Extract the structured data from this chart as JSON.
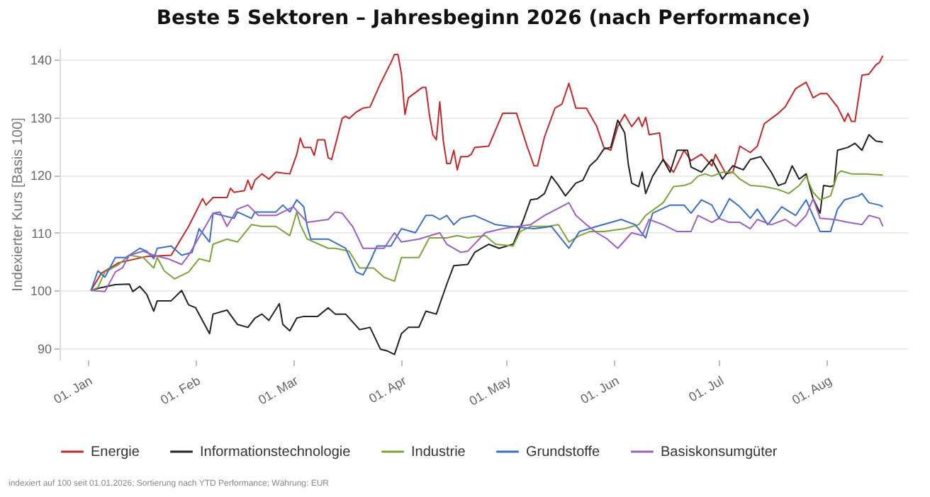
{
  "chart_data": {
    "type": "line",
    "title": "Beste 5 Sektoren – Jahresbeginn 2026 (nach Performance)",
    "ylabel": "Indexierter Kurs [Basis 100]",
    "xlim": [
      "2025-12-24",
      "2026-08-24"
    ],
    "xticks": [
      {
        "value": "2026-01-01",
        "label": "01. Jan"
      },
      {
        "value": "2026-02-01",
        "label": "01. Feb"
      },
      {
        "value": "2026-03-01",
        "label": "01. Mar"
      },
      {
        "value": "2026-04-01",
        "label": "01. Apr"
      },
      {
        "value": "2026-05-01",
        "label": "01. May"
      },
      {
        "value": "2026-06-01",
        "label": "01. Jun"
      },
      {
        "value": "2026-07-01",
        "label": "01. Jul"
      },
      {
        "value": "2026-08-01",
        "label": "01. Aug"
      }
    ],
    "ylim": [
      88,
      142
    ],
    "yticks": [
      90,
      100,
      110,
      120,
      130,
      140
    ],
    "grid": "y",
    "legend": "bottom",
    "marker": "none",
    "line_style": "solid",
    "annotations": [
      "indexiert auf 100 seit 01.01.2026; Sortierung nach YTD Performance; Währung: EUR"
    ],
    "series": [
      {
        "name": "Energie",
        "color": "#c0282d",
        "x": [
          "2026-01-02",
          "2026-01-05",
          "2026-01-10",
          "2026-01-18",
          "2026-01-25",
          "2026-01-30",
          "2026-02-03",
          "2026-02-04",
          "2026-02-06",
          "2026-02-10",
          "2026-02-11",
          "2026-02-12",
          "2026-02-15",
          "2026-02-16",
          "2026-02-17",
          "2026-02-18",
          "2026-02-20",
          "2026-02-22",
          "2026-02-24",
          "2026-02-28",
          "2026-03-02",
          "2026-03-03",
          "2026-03-04",
          "2026-03-06",
          "2026-03-07",
          "2026-03-08",
          "2026-03-10",
          "2026-03-11",
          "2026-03-12",
          "2026-03-15",
          "2026-03-16",
          "2026-03-17",
          "2026-03-19",
          "2026-03-21",
          "2026-03-23",
          "2026-03-26",
          "2026-03-29",
          "2026-03-30",
          "2026-03-31",
          "2026-04-01",
          "2026-04-02",
          "2026-04-03",
          "2026-04-07",
          "2026-04-08",
          "2026-04-09",
          "2026-04-10",
          "2026-04-11",
          "2026-04-12",
          "2026-04-13",
          "2026-04-14",
          "2026-04-15",
          "2026-04-16",
          "2026-04-17",
          "2026-04-18",
          "2026-04-20",
          "2026-04-21",
          "2026-04-22",
          "2026-04-26",
          "2026-04-30",
          "2026-05-04",
          "2026-05-07",
          "2026-05-09",
          "2026-05-10",
          "2026-05-12",
          "2026-05-15",
          "2026-05-17",
          "2026-05-19",
          "2026-05-21",
          "2026-05-24",
          "2026-05-27",
          "2026-05-29",
          "2026-05-31",
          "2026-06-02",
          "2026-06-04",
          "2026-06-06",
          "2026-06-08",
          "2026-06-09",
          "2026-06-10",
          "2026-06-11",
          "2026-06-14",
          "2026-06-15",
          "2026-06-18",
          "2026-06-21",
          "2026-06-23",
          "2026-06-26",
          "2026-06-29",
          "2026-06-30",
          "2026-07-03",
          "2026-07-05",
          "2026-07-07",
          "2026-07-10",
          "2026-07-12",
          "2026-07-14",
          "2026-07-18",
          "2026-07-20",
          "2026-07-23",
          "2026-07-26",
          "2026-07-28",
          "2026-07-30",
          "2026-08-01",
          "2026-08-04",
          "2026-08-06",
          "2026-08-07",
          "2026-08-08",
          "2026-08-09",
          "2026-08-11",
          "2026-08-13",
          "2026-08-15",
          "2026-08-16",
          "2026-08-17"
        ],
        "values": [
          100,
          103.0,
          104.8,
          105.9,
          106.1,
          111.1,
          115.9,
          114.8,
          116.1,
          116.1,
          117.7,
          117.0,
          117.3,
          119.1,
          117.5,
          119.1,
          120.2,
          119.3,
          120.5,
          120.2,
          123.6,
          126.4,
          124.8,
          124.8,
          123.4,
          126.1,
          126.1,
          123.0,
          122.7,
          129.8,
          130.2,
          129.8,
          130.9,
          131.6,
          131.8,
          135.9,
          139.5,
          140.9,
          140.9,
          137.5,
          130.5,
          133.4,
          135.2,
          135.2,
          130.5,
          127.0,
          126.1,
          132.7,
          125.9,
          122.0,
          122.0,
          124.3,
          120.9,
          123.2,
          123.2,
          123.6,
          124.8,
          125.0,
          130.7,
          130.7,
          125.0,
          121.6,
          121.6,
          126.6,
          131.6,
          132.3,
          135.9,
          131.6,
          131.6,
          128.4,
          124.8,
          124.3,
          128.4,
          130.5,
          128.4,
          130.0,
          128.4,
          130.0,
          127.0,
          127.3,
          122.7,
          120.5,
          124.3,
          122.5,
          123.6,
          121.6,
          123.6,
          120.2,
          120.5,
          125.0,
          123.9,
          125.0,
          128.9,
          130.7,
          131.8,
          135.0,
          136.1,
          133.4,
          134.1,
          134.1,
          131.8,
          129.3,
          130.7,
          129.3,
          129.3,
          137.3,
          137.5,
          139.1,
          139.5,
          140.7
        ]
      },
      {
        "name": "Informationstechnologie",
        "color": "#222222",
        "x": [
          "2026-01-02",
          "2026-01-05",
          "2026-01-09",
          "2026-01-13",
          "2026-01-14",
          "2026-01-16",
          "2026-01-18",
          "2026-01-20",
          "2026-01-21",
          "2026-01-25",
          "2026-01-28",
          "2026-01-30",
          "2026-02-01",
          "2026-02-05",
          "2026-02-06",
          "2026-02-10",
          "2026-02-13",
          "2026-02-16",
          "2026-02-18",
          "2026-02-20",
          "2026-02-22",
          "2026-02-25",
          "2026-02-26",
          "2026-02-28",
          "2026-03-02",
          "2026-03-04",
          "2026-03-08",
          "2026-03-11",
          "2026-03-13",
          "2026-03-16",
          "2026-03-20",
          "2026-03-23",
          "2026-03-26",
          "2026-03-28",
          "2026-03-30",
          "2026-04-01",
          "2026-04-03",
          "2026-04-06",
          "2026-04-08",
          "2026-04-11",
          "2026-04-14",
          "2026-04-16",
          "2026-04-20",
          "2026-04-22",
          "2026-04-24",
          "2026-04-26",
          "2026-04-29",
          "2026-05-03",
          "2026-05-06",
          "2026-05-08",
          "2026-05-10",
          "2026-05-12",
          "2026-05-14",
          "2026-05-16",
          "2026-05-18",
          "2026-05-21",
          "2026-05-23",
          "2026-05-25",
          "2026-05-27",
          "2026-05-29",
          "2026-05-31",
          "2026-06-02",
          "2026-06-04",
          "2026-06-05",
          "2026-06-06",
          "2026-06-08",
          "2026-06-09",
          "2026-06-10",
          "2026-06-12",
          "2026-06-15",
          "2026-06-17",
          "2026-06-19",
          "2026-06-22",
          "2026-06-23",
          "2026-06-26",
          "2026-06-29",
          "2026-07-02",
          "2026-07-05",
          "2026-07-08",
          "2026-07-10",
          "2026-07-13",
          "2026-07-16",
          "2026-07-18",
          "2026-07-20",
          "2026-07-22",
          "2026-07-24",
          "2026-07-26",
          "2026-07-28",
          "2026-07-30",
          "2026-07-31",
          "2026-08-02",
          "2026-08-03",
          "2026-08-04",
          "2026-08-07",
          "2026-08-09",
          "2026-08-11",
          "2026-08-13",
          "2026-08-15",
          "2026-08-17"
        ],
        "values": [
          100,
          100.5,
          101.0,
          101.1,
          99.8,
          100.7,
          99.3,
          96.4,
          98.2,
          98.2,
          100,
          97.5,
          97.0,
          92.5,
          95.9,
          96.6,
          94.1,
          93.6,
          95.2,
          95.9,
          94.8,
          97.7,
          94.1,
          93.0,
          95.2,
          95.5,
          95.5,
          97.0,
          95.9,
          95.9,
          93.2,
          93.6,
          89.8,
          89.5,
          88.9,
          92.5,
          93.6,
          93.6,
          96.4,
          95.9,
          101.1,
          104.3,
          104.5,
          106.6,
          107.3,
          108.0,
          107.3,
          108.0,
          112.3,
          115.7,
          115.9,
          116.8,
          119.8,
          118.2,
          116.4,
          118.6,
          119.1,
          121.6,
          122.7,
          124.5,
          124.8,
          129.5,
          127.3,
          122.0,
          118.6,
          118.0,
          120.5,
          116.8,
          119.8,
          122.7,
          120.5,
          124.3,
          124.3,
          121.4,
          120.5,
          122.7,
          119.3,
          121.6,
          120.9,
          122.7,
          123.2,
          120.5,
          118.2,
          118.6,
          121.6,
          119.3,
          120.2,
          115.9,
          113.4,
          118.2,
          118.0,
          118.2,
          124.3,
          124.8,
          125.5,
          124.3,
          127.0,
          125.9,
          125.7
        ]
      },
      {
        "name": "Industrie",
        "color": "#7fa33b",
        "x": [
          "2026-01-02",
          "2026-01-04",
          "2026-01-06",
          "2026-01-10",
          "2026-01-13",
          "2026-01-17",
          "2026-01-20",
          "2026-01-21",
          "2026-01-23",
          "2026-01-26",
          "2026-01-30",
          "2026-02-02",
          "2026-02-05",
          "2026-02-06",
          "2026-02-10",
          "2026-02-13",
          "2026-02-17",
          "2026-02-20",
          "2026-02-24",
          "2026-02-28",
          "2026-03-02",
          "2026-03-03",
          "2026-03-05",
          "2026-03-11",
          "2026-03-13",
          "2026-03-17",
          "2026-03-20",
          "2026-03-24",
          "2026-03-27",
          "2026-03-30",
          "2026-04-01",
          "2026-04-06",
          "2026-04-09",
          "2026-04-14",
          "2026-04-17",
          "2026-04-20",
          "2026-04-25",
          "2026-04-28",
          "2026-05-03",
          "2026-05-05",
          "2026-05-08",
          "2026-05-13",
          "2026-05-16",
          "2026-05-19",
          "2026-05-22",
          "2026-05-25",
          "2026-05-29",
          "2026-06-04",
          "2026-06-08",
          "2026-06-10",
          "2026-06-15",
          "2026-06-18",
          "2026-06-21",
          "2026-06-23",
          "2026-06-25",
          "2026-06-27",
          "2026-06-29",
          "2026-07-02",
          "2026-07-05",
          "2026-07-07",
          "2026-07-10",
          "2026-07-14",
          "2026-07-18",
          "2026-07-21",
          "2026-07-24",
          "2026-07-26",
          "2026-07-28",
          "2026-07-30",
          "2026-08-02",
          "2026-08-04",
          "2026-08-05",
          "2026-08-08",
          "2026-08-12",
          "2026-08-17"
        ],
        "values": [
          100,
          100.5,
          103.2,
          104.5,
          106.1,
          105.7,
          103.9,
          105.7,
          103.4,
          102.0,
          103.2,
          105.5,
          105.0,
          108.0,
          108.9,
          108.4,
          111.4,
          111.1,
          111.1,
          109.5,
          113.6,
          111.4,
          108.9,
          107.3,
          107.3,
          106.8,
          103.9,
          103.9,
          102.3,
          101.6,
          105.7,
          105.7,
          109.1,
          109.1,
          109.5,
          109.1,
          109.5,
          108.0,
          107.7,
          110.2,
          111.1,
          111.1,
          111.4,
          108.4,
          109.5,
          110.2,
          110.2,
          110.7,
          111.4,
          113.0,
          115.2,
          118.0,
          118.2,
          118.6,
          119.8,
          120.2,
          119.8,
          120.5,
          120.5,
          119.3,
          118.2,
          118.0,
          117.5,
          116.8,
          118.2,
          119.8,
          117.0,
          115.7,
          116.4,
          120.2,
          120.7,
          120.2,
          120.2,
          120.0
        ]
      },
      {
        "name": "Grundstoffe",
        "color": "#3a6fc4",
        "x": [
          "2026-01-02",
          "2026-01-04",
          "2026-01-06",
          "2026-01-09",
          "2026-01-12",
          "2026-01-16",
          "2026-01-18",
          "2026-01-20",
          "2026-01-21",
          "2026-01-25",
          "2026-01-28",
          "2026-01-31",
          "2026-02-02",
          "2026-02-05",
          "2026-02-06",
          "2026-02-12",
          "2026-02-13",
          "2026-02-17",
          "2026-02-18",
          "2026-02-24",
          "2026-02-26",
          "2026-02-28",
          "2026-03-02",
          "2026-03-04",
          "2026-03-05",
          "2026-03-06",
          "2026-03-11",
          "2026-03-16",
          "2026-03-19",
          "2026-03-21",
          "2026-03-23",
          "2026-03-25",
          "2026-03-29",
          "2026-04-01",
          "2026-04-05",
          "2026-04-08",
          "2026-04-10",
          "2026-04-12",
          "2026-04-14",
          "2026-04-16",
          "2026-04-18",
          "2026-04-22",
          "2026-04-28",
          "2026-05-02",
          "2026-05-09",
          "2026-05-14",
          "2026-05-19",
          "2026-05-22",
          "2026-05-27",
          "2026-06-03",
          "2026-06-07",
          "2026-06-10",
          "2026-06-12",
          "2026-06-17",
          "2026-06-21",
          "2026-06-23",
          "2026-06-26",
          "2026-06-29",
          "2026-07-01",
          "2026-07-04",
          "2026-07-07",
          "2026-07-10",
          "2026-07-12",
          "2026-07-15",
          "2026-07-19",
          "2026-07-23",
          "2026-07-26",
          "2026-07-30",
          "2026-08-02",
          "2026-08-04",
          "2026-08-06",
          "2026-08-10",
          "2026-08-11",
          "2026-08-13",
          "2026-08-16",
          "2026-08-17"
        ],
        "values": [
          100,
          103.4,
          102.3,
          105.7,
          105.7,
          107.3,
          106.8,
          105.5,
          107.3,
          107.7,
          106.1,
          106.6,
          110.7,
          108.4,
          113.4,
          112.5,
          113.6,
          112.5,
          113.6,
          113.6,
          114.8,
          113.6,
          115.7,
          114.5,
          111.1,
          108.9,
          108.9,
          107.3,
          103.2,
          102.7,
          105.0,
          107.7,
          107.7,
          110.7,
          110.0,
          113.0,
          113.0,
          112.3,
          113.0,
          111.4,
          112.5,
          113.0,
          111.4,
          111.1,
          110.7,
          111.1,
          107.3,
          110.2,
          111.1,
          112.3,
          111.4,
          109.1,
          113.4,
          114.8,
          114.8,
          113.4,
          115.7,
          114.8,
          112.5,
          115.9,
          114.5,
          112.5,
          114.1,
          111.4,
          114.5,
          113.0,
          115.7,
          110.2,
          110.2,
          114.1,
          115.7,
          116.4,
          116.8,
          115.2,
          114.8,
          114.5
        ]
      },
      {
        "name": "Basiskonsumgüter",
        "color": "#9b5fc0",
        "x": [
          "2026-01-02",
          "2026-01-06",
          "2026-01-09",
          "2026-01-11",
          "2026-01-13",
          "2026-01-17",
          "2026-01-20",
          "2026-01-24",
          "2026-01-28",
          "2026-01-30",
          "2026-02-06",
          "2026-02-08",
          "2026-02-10",
          "2026-02-13",
          "2026-02-16",
          "2026-02-19",
          "2026-02-24",
          "2026-03-01",
          "2026-03-05",
          "2026-03-11",
          "2026-03-13",
          "2026-03-15",
          "2026-03-18",
          "2026-03-21",
          "2026-03-27",
          "2026-03-30",
          "2026-04-01",
          "2026-04-06",
          "2026-04-12",
          "2026-04-14",
          "2026-04-18",
          "2026-04-20",
          "2026-04-25",
          "2026-04-30",
          "2026-05-08",
          "2026-05-12",
          "2026-05-19",
          "2026-05-21",
          "2026-05-24",
          "2026-05-27",
          "2026-05-30",
          "2026-06-02",
          "2026-06-06",
          "2026-06-09",
          "2026-06-11",
          "2026-06-15",
          "2026-06-19",
          "2026-06-23",
          "2026-06-25",
          "2026-06-29",
          "2026-07-01",
          "2026-07-04",
          "2026-07-07",
          "2026-07-10",
          "2026-07-12",
          "2026-07-16",
          "2026-07-20",
          "2026-07-23",
          "2026-07-26",
          "2026-07-28",
          "2026-07-30",
          "2026-08-03",
          "2026-08-07",
          "2026-08-11",
          "2026-08-13",
          "2026-08-16",
          "2026-08-17"
        ],
        "values": [
          100,
          99.8,
          103.2,
          103.9,
          106.1,
          106.8,
          106.1,
          105.5,
          104.5,
          106.1,
          113.4,
          113.6,
          111.1,
          114.1,
          114.8,
          113.0,
          113.0,
          114.5,
          111.8,
          112.3,
          113.6,
          113.4,
          111.1,
          107.3,
          107.3,
          110.0,
          108.4,
          108.9,
          110.0,
          108.0,
          106.6,
          106.8,
          110.0,
          110.7,
          111.4,
          113.0,
          115.2,
          113.0,
          111.4,
          110.0,
          108.9,
          107.3,
          110.0,
          109.5,
          112.3,
          111.4,
          110.2,
          110.2,
          113.0,
          111.8,
          112.5,
          111.8,
          111.8,
          110.7,
          112.3,
          111.4,
          112.3,
          111.1,
          113.0,
          115.9,
          112.5,
          112.3,
          111.8,
          111.4,
          113.0,
          112.5,
          111.1
        ]
      }
    ]
  }
}
